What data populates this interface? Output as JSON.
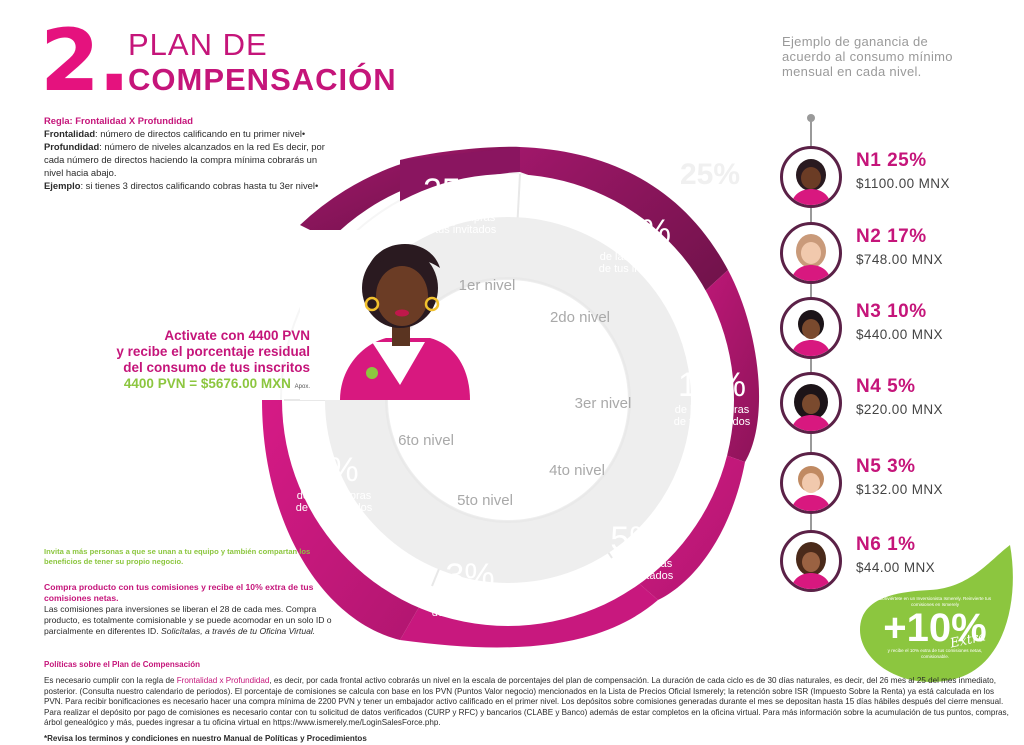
{
  "title": {
    "number": "2.",
    "line1": "PLAN DE",
    "line2": "COMPENSACIÓN"
  },
  "rules": {
    "heading": "Regla: Frontalidad X Profundidad",
    "frontalidad_label": "Frontalidad",
    "frontalidad_text": ": número de directos calificando en tu primer nivel•",
    "profundidad_label": "Profundidad",
    "profundidad_text": ": número de niveles alcanzados en la red Es decir, por cada número de directos haciendo la compra mínima cobrarás un nivel hacia abajo.",
    "ejemplo_label": "Ejemplo",
    "ejemplo_text": ": si tienes 3 directos calificando cobras hasta tu 3er nivel•"
  },
  "activate": {
    "line1": "Activate con 4400 PVN",
    "line2": "y recibe el porcentaje residual",
    "line3": "del consumo de tus inscritos",
    "formula": "4400 PVN = $5676.00 MXN",
    "approx": "Apox."
  },
  "invite": "Invita a más personas a que se unan a tu equipo y también compartan los beneficios de tener su propio negocio.",
  "buy": {
    "highlight": "Compra producto con tus comisiones y recibe el 10% extra de tus comisiones netas.",
    "text": "Las comisiones para inversiones se liberan el 28 de cada mes. Compra producto, es totalmente comisionable y se puede acomodar en un solo ID o parcialmente en  diferentes ID.",
    "italic": "Solicítalas, a través de tu Oficina Virtual."
  },
  "wheel": {
    "caption": "de las compras de tus invitados",
    "caption_line1": "de las compras",
    "caption_line2": "de tus invitados",
    "levels": [
      {
        "pct": "25%",
        "inner": "1er nivel"
      },
      {
        "pct": "17%",
        "inner": "2do nivel"
      },
      {
        "pct": "10%",
        "inner": "3er nivel"
      },
      {
        "pct": "5%",
        "inner": "4to nivel"
      },
      {
        "pct": "3%",
        "inner": "5to nivel"
      },
      {
        "pct": "1%",
        "inner": "6to nivel"
      }
    ]
  },
  "example_heading": "Ejemplo de ganancia de acuerdo al consumo mínimo mensual en cada nivel.",
  "ghost": "25%",
  "earnings": [
    {
      "name": "N1 25%",
      "amount": "$1100.00 MNX"
    },
    {
      "name": "N2 17%",
      "amount": "$748.00 MNX"
    },
    {
      "name": "N3 10%",
      "amount": "$440.00 MNX"
    },
    {
      "name": "N4 5%",
      "amount": "$220.00 MNX"
    },
    {
      "name": "N5 3%",
      "amount": "$132.00 MNX"
    },
    {
      "name": "N6 1%",
      "amount": "$44.00 MNX"
    }
  ],
  "bonus": {
    "top": "Conviértete en un Inversionista Ismerely. Reinvierte tus comisiones en Ismerely",
    "big": "+10%",
    "extra": "Extra",
    "bottom": "y recibe el 10% extra de tus comisiones netas, comisionable."
  },
  "policy": {
    "title": "Políticas sobre el Plan de Compensación",
    "intro": "Es necesario cumplir con la regla de ",
    "rule": "Frontalidad x Profundidad",
    "body": ", es decir, por cada frontal activo cobrarás un nivel en la escala de porcentajes del plan de compensación. La duración de cada ciclo es de 30 días naturales, es decir, del 26 mes al 25 del mes inmediato, posterior. (Consulta nuestro calendario de periodos). El porcentaje de comisiones se calcula con base en los PVN (Puntos Valor negocio) mencionados en la Lista de Precios Oficial Ismerely; la retención sobre ISR (Impuesto Sobre la Renta) ya está calculada en los PVN. Para recibir bonificaciones es necesario hacer una compra mínima de 2200 PVN y tener un embajador activo calificado en el primer nivel. Los depósitos sobre comisiones generadas durante el mes se depositan hasta 15 días hábiles después del cierre mensual. Para realizar el depósito por pago de comisiones es necesario contar con tu solicitud de datos verificados (CURP y RFC) y bancarios (CLABE y Banco) además de estar completos en la oficina virtual. Para más información sobre la acumulación de tus puntos, compras, árbol genealógico y más, puedes ingresar a tu oficina virtual en https://www.ismerely.me/LoginSalesForce.php.",
    "footnote": "*Revisa los terminos y condiciones en nuestro Manual de Políticas y Procedimientos"
  },
  "colors": {
    "magenta": "#c5157a",
    "deep": "#7a1550",
    "green": "#8cc63f",
    "grey": "#9a9a9a"
  }
}
